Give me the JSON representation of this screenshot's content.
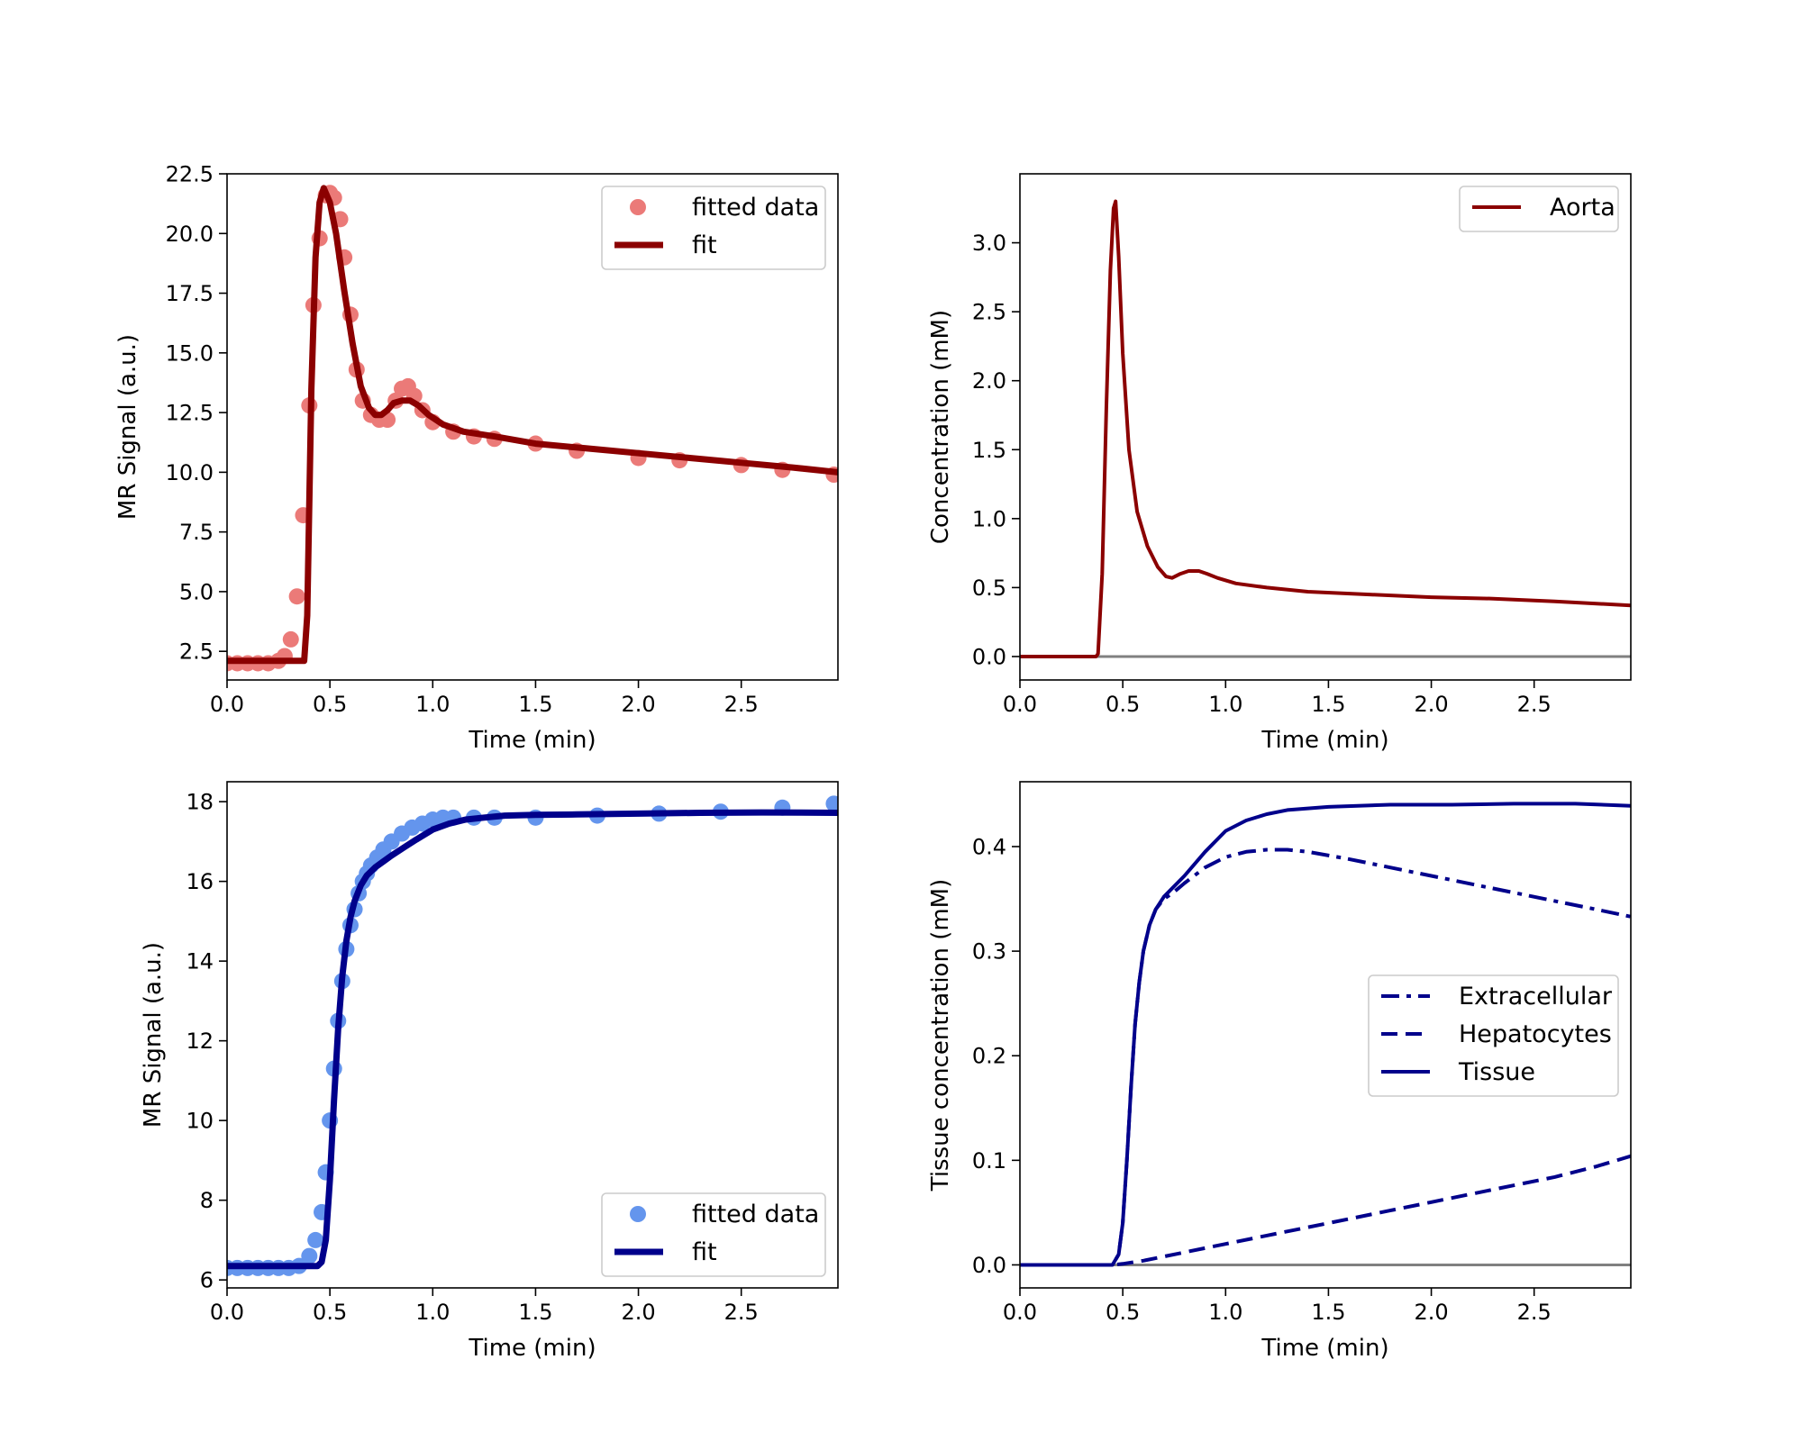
{
  "chart_data": [
    {
      "panel": "top-left",
      "type": "scatter",
      "xlabel": "Time (min)",
      "ylabel": "MR Signal (a.u.)",
      "xlim": [
        0,
        2.97
      ],
      "ylim": [
        1.3,
        22.5
      ],
      "xticks": [
        0,
        0.5,
        1.0,
        1.5,
        2.0,
        2.5
      ],
      "xtick_labels": [
        "0.0",
        "0.5",
        "1.0",
        "1.5",
        "2.0",
        "2.5"
      ],
      "yticks": [
        2.5,
        5.0,
        7.5,
        10.0,
        12.5,
        15.0,
        17.5,
        20.0,
        22.5
      ],
      "ytick_labels": [
        "2.5",
        "5.0",
        "7.5",
        "10.0",
        "12.5",
        "15.0",
        "17.5",
        "20.0",
        "22.5"
      ],
      "legend_position": "top-right",
      "series": [
        {
          "name": "fitted data",
          "kind": "scatter",
          "color": "#eb7a78",
          "x": [
            0,
            0.05,
            0.1,
            0.15,
            0.2,
            0.25,
            0.28,
            0.31,
            0.34,
            0.37,
            0.4,
            0.42,
            0.45,
            0.48,
            0.5,
            0.52,
            0.55,
            0.57,
            0.6,
            0.63,
            0.66,
            0.7,
            0.74,
            0.78,
            0.82,
            0.85,
            0.88,
            0.91,
            0.95,
            1.0,
            1.1,
            1.2,
            1.3,
            1.5,
            1.7,
            2.0,
            2.2,
            2.5,
            2.7,
            2.95
          ],
          "y": [
            2.0,
            2.0,
            2.0,
            2.0,
            2.0,
            2.1,
            2.3,
            3.0,
            4.8,
            8.2,
            12.8,
            17.0,
            19.8,
            21.6,
            21.7,
            21.5,
            20.6,
            19.0,
            16.6,
            14.3,
            13.0,
            12.4,
            12.2,
            12.2,
            13.0,
            13.5,
            13.6,
            13.2,
            12.6,
            12.1,
            11.7,
            11.5,
            11.4,
            11.2,
            10.9,
            10.6,
            10.5,
            10.3,
            10.1,
            9.9
          ]
        },
        {
          "name": "fit",
          "kind": "line",
          "color": "#8b0000",
          "x": [
            0,
            0.36,
            0.375,
            0.39,
            0.41,
            0.43,
            0.45,
            0.47,
            0.5,
            0.53,
            0.57,
            0.61,
            0.65,
            0.69,
            0.72,
            0.75,
            0.78,
            0.81,
            0.85,
            0.89,
            0.93,
            0.98,
            1.05,
            1.15,
            1.3,
            1.5,
            1.75,
            2.0,
            2.25,
            2.5,
            2.75,
            2.97
          ],
          "y": [
            2.1,
            2.1,
            2.1,
            4.0,
            13.5,
            19.0,
            21.3,
            21.9,
            21.3,
            20.0,
            17.6,
            15.4,
            13.6,
            12.7,
            12.4,
            12.4,
            12.6,
            12.9,
            13.0,
            13.0,
            12.8,
            12.4,
            12.0,
            11.7,
            11.5,
            11.2,
            11.0,
            10.8,
            10.6,
            10.4,
            10.2,
            10.0
          ]
        }
      ]
    },
    {
      "panel": "top-right",
      "type": "line",
      "xlabel": "Time (min)",
      "ylabel": "Concentration (mM)",
      "xlim": [
        0,
        2.97
      ],
      "ylim": [
        -0.17,
        3.5
      ],
      "xticks": [
        0,
        0.5,
        1.0,
        1.5,
        2.0,
        2.5
      ],
      "xtick_labels": [
        "0.0",
        "0.5",
        "1.0",
        "1.5",
        "2.0",
        "2.5"
      ],
      "yticks": [
        0,
        0.5,
        1.0,
        1.5,
        2.0,
        2.5,
        3.0
      ],
      "ytick_labels": [
        "0.0",
        "0.5",
        "1.0",
        "1.5",
        "2.0",
        "2.5",
        "3.0"
      ],
      "legend_position": "top-right",
      "baseline": {
        "y": 0,
        "color": "#808080"
      },
      "series": [
        {
          "name": "Aorta",
          "kind": "line",
          "color": "#8b0000",
          "x": [
            0,
            0.37,
            0.38,
            0.4,
            0.42,
            0.44,
            0.455,
            0.465,
            0.48,
            0.5,
            0.53,
            0.57,
            0.62,
            0.67,
            0.71,
            0.74,
            0.78,
            0.82,
            0.87,
            0.91,
            0.96,
            1.05,
            1.2,
            1.4,
            1.7,
            2.0,
            2.3,
            2.6,
            2.97
          ],
          "y": [
            0,
            0,
            0.02,
            0.6,
            1.8,
            2.8,
            3.25,
            3.3,
            2.9,
            2.2,
            1.5,
            1.05,
            0.8,
            0.65,
            0.58,
            0.57,
            0.6,
            0.62,
            0.62,
            0.6,
            0.57,
            0.53,
            0.5,
            0.47,
            0.45,
            0.43,
            0.42,
            0.4,
            0.37
          ]
        }
      ]
    },
    {
      "panel": "bottom-left",
      "type": "scatter",
      "xlabel": "Time (min)",
      "ylabel": "MR Signal (a.u.)",
      "xlim": [
        0,
        2.97
      ],
      "ylim": [
        5.8,
        18.5
      ],
      "xticks": [
        0,
        0.5,
        1.0,
        1.5,
        2.0,
        2.5
      ],
      "xtick_labels": [
        "0.0",
        "0.5",
        "1.0",
        "1.5",
        "2.0",
        "2.5"
      ],
      "yticks": [
        6,
        8,
        10,
        12,
        14,
        16,
        18
      ],
      "ytick_labels": [
        "6",
        "8",
        "10",
        "12",
        "14",
        "16",
        "18"
      ],
      "legend_position": "bottom-right",
      "series": [
        {
          "name": "fitted data",
          "kind": "scatter",
          "color": "#6495ed",
          "x": [
            0,
            0.05,
            0.1,
            0.15,
            0.2,
            0.25,
            0.3,
            0.35,
            0.4,
            0.43,
            0.46,
            0.48,
            0.5,
            0.52,
            0.54,
            0.56,
            0.58,
            0.6,
            0.62,
            0.64,
            0.66,
            0.68,
            0.7,
            0.73,
            0.76,
            0.8,
            0.85,
            0.9,
            0.95,
            1.0,
            1.05,
            1.1,
            1.2,
            1.3,
            1.5,
            1.8,
            2.1,
            2.4,
            2.7,
            2.95
          ],
          "y": [
            6.3,
            6.3,
            6.3,
            6.3,
            6.3,
            6.3,
            6.3,
            6.35,
            6.6,
            7.0,
            7.7,
            8.7,
            10.0,
            11.3,
            12.5,
            13.5,
            14.3,
            14.9,
            15.3,
            15.7,
            16.0,
            16.2,
            16.4,
            16.6,
            16.8,
            17.0,
            17.2,
            17.35,
            17.45,
            17.55,
            17.6,
            17.6,
            17.6,
            17.6,
            17.6,
            17.65,
            17.7,
            17.75,
            17.85,
            17.95
          ]
        },
        {
          "name": "fit",
          "kind": "line",
          "color": "#00008b",
          "x": [
            0,
            0.44,
            0.46,
            0.48,
            0.5,
            0.52,
            0.54,
            0.56,
            0.58,
            0.6,
            0.62,
            0.65,
            0.68,
            0.72,
            0.76,
            0.8,
            0.86,
            0.92,
            1.0,
            1.08,
            1.16,
            1.25,
            1.35,
            1.5,
            1.7,
            2.0,
            2.3,
            2.6,
            2.97
          ],
          "y": [
            6.35,
            6.35,
            6.45,
            7.0,
            8.5,
            10.5,
            12.3,
            13.6,
            14.5,
            15.1,
            15.5,
            15.9,
            16.15,
            16.35,
            16.5,
            16.65,
            16.85,
            17.05,
            17.3,
            17.45,
            17.55,
            17.6,
            17.65,
            17.67,
            17.68,
            17.7,
            17.72,
            17.73,
            17.72
          ]
        }
      ]
    },
    {
      "panel": "bottom-right",
      "type": "line",
      "xlabel": "Time (min)",
      "ylabel": "Tissue concentration (mM)",
      "xlim": [
        0,
        2.97
      ],
      "ylim": [
        -0.022,
        0.462
      ],
      "xticks": [
        0,
        0.5,
        1.0,
        1.5,
        2.0,
        2.5
      ],
      "xtick_labels": [
        "0.0",
        "0.5",
        "1.0",
        "1.5",
        "2.0",
        "2.5"
      ],
      "yticks": [
        0,
        0.1,
        0.2,
        0.3,
        0.4
      ],
      "ytick_labels": [
        "0.0",
        "0.1",
        "0.2",
        "0.3",
        "0.4"
      ],
      "legend_position": "center-right",
      "baseline": {
        "y": 0,
        "color": "#808080"
      },
      "series": [
        {
          "name": "Extracellular",
          "kind": "line",
          "dash": "dashdot",
          "color": "#00008b",
          "x": [
            0,
            0.45,
            0.48,
            0.5,
            0.52,
            0.54,
            0.56,
            0.58,
            0.6,
            0.63,
            0.66,
            0.7,
            0.74,
            0.8,
            0.9,
            1.0,
            1.1,
            1.2,
            1.3,
            1.4,
            1.6,
            1.8,
            2.0,
            2.2,
            2.4,
            2.6,
            2.8,
            2.97
          ],
          "y": [
            0,
            0,
            0.01,
            0.04,
            0.1,
            0.17,
            0.23,
            0.27,
            0.3,
            0.325,
            0.34,
            0.35,
            0.355,
            0.365,
            0.38,
            0.39,
            0.395,
            0.397,
            0.397,
            0.395,
            0.388,
            0.38,
            0.372,
            0.364,
            0.356,
            0.348,
            0.34,
            0.333
          ]
        },
        {
          "name": "Hepatocytes",
          "kind": "line",
          "dash": "dashed",
          "color": "#00008b",
          "x": [
            0,
            0.45,
            0.5,
            0.6,
            0.8,
            1.0,
            1.2,
            1.4,
            1.6,
            1.8,
            2.0,
            2.2,
            2.4,
            2.6,
            2.8,
            2.97
          ],
          "y": [
            0,
            0,
            0.001,
            0.004,
            0.012,
            0.02,
            0.028,
            0.036,
            0.044,
            0.052,
            0.06,
            0.068,
            0.076,
            0.084,
            0.094,
            0.104
          ]
        },
        {
          "name": "Tissue",
          "kind": "line",
          "dash": "solid",
          "color": "#00008b",
          "x": [
            0,
            0.45,
            0.48,
            0.5,
            0.52,
            0.54,
            0.56,
            0.58,
            0.6,
            0.63,
            0.66,
            0.7,
            0.74,
            0.8,
            0.9,
            1.0,
            1.1,
            1.2,
            1.3,
            1.5,
            1.8,
            2.1,
            2.4,
            2.7,
            2.97
          ],
          "y": [
            0,
            0,
            0.01,
            0.04,
            0.1,
            0.17,
            0.23,
            0.27,
            0.3,
            0.325,
            0.34,
            0.352,
            0.36,
            0.372,
            0.395,
            0.415,
            0.425,
            0.431,
            0.435,
            0.438,
            0.44,
            0.44,
            0.441,
            0.441,
            0.439
          ]
        }
      ]
    }
  ]
}
